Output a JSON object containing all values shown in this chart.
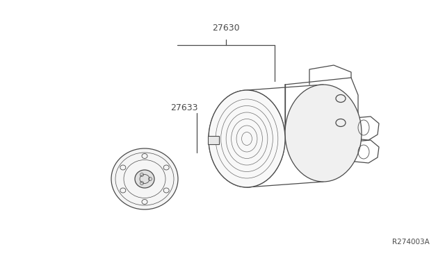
{
  "bg_color": "#ffffff",
  "line_color": "#4a4a4a",
  "text_color": "#4a4a4a",
  "part_label_1": "27630",
  "part_label_2": "27633",
  "ref_label": "R274003A",
  "fig_width": 6.4,
  "fig_height": 3.72,
  "dpi": 100
}
